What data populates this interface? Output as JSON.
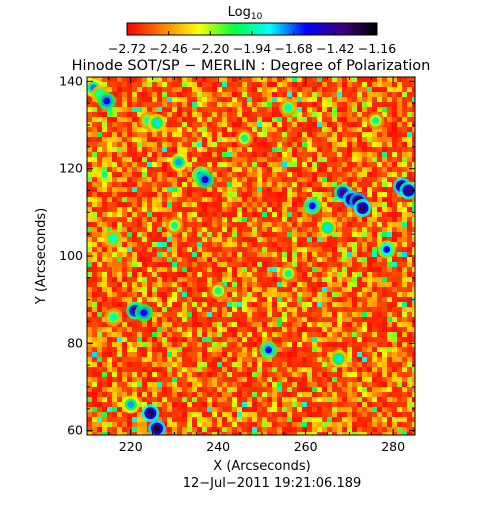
{
  "chart_data": {
    "type": "heatmap",
    "title": "Hinode SOT/SP − MERLIN : Degree of Polarization",
    "xlabel": "X (Arcseconds)",
    "ylabel": "Y (Arcseconds)",
    "footer": "12−Jul−2011  19:21:06.189",
    "xlim": [
      210,
      285
    ],
    "ylim": [
      59,
      141
    ],
    "x_ticks": [
      220,
      240,
      260,
      280
    ],
    "y_ticks": [
      60,
      80,
      100,
      120,
      140
    ],
    "x_tick_labels": [
      "220",
      "240",
      "260",
      "280"
    ],
    "y_tick_labels": [
      "60",
      "80",
      "100",
      "120",
      "140"
    ],
    "colorbar": {
      "label_base": "Log",
      "label_sub": "10",
      "ticks": [
        -2.72,
        -2.46,
        -2.2,
        -1.94,
        -1.68,
        -1.42,
        -1.16
      ],
      "tick_labels": [
        "−2.72",
        "−2.46",
        "−2.20",
        "−1.94",
        "−1.68",
        "−1.42",
        "−1.16"
      ],
      "range": [
        -2.72,
        -1.16
      ],
      "colors": [
        "#ff0000",
        "#ff8000",
        "#ffff00",
        "#00ff40",
        "#00ffff",
        "#0000ff",
        "#400080",
        "#000000"
      ]
    },
    "background_value": -2.65,
    "features": [
      {
        "x": 211.5,
        "y": 138.5,
        "value": -1.7
      },
      {
        "x": 213.0,
        "y": 137.0,
        "value": -1.85
      },
      {
        "x": 214.5,
        "y": 135.5,
        "value": -1.5
      },
      {
        "x": 224.0,
        "y": 131.0,
        "value": -1.9
      },
      {
        "x": 226.0,
        "y": 130.5,
        "value": -1.8
      },
      {
        "x": 231.0,
        "y": 121.5,
        "value": -1.75
      },
      {
        "x": 236.0,
        "y": 118.5,
        "value": -1.6
      },
      {
        "x": 237.0,
        "y": 117.5,
        "value": -1.5
      },
      {
        "x": 268.5,
        "y": 114.5,
        "value": -1.4
      },
      {
        "x": 270.5,
        "y": 113.0,
        "value": -1.25
      },
      {
        "x": 272.0,
        "y": 112.5,
        "value": -1.2
      },
      {
        "x": 273.0,
        "y": 111.0,
        "value": -1.3
      },
      {
        "x": 282.0,
        "y": 116.0,
        "value": -1.25
      },
      {
        "x": 283.5,
        "y": 115.0,
        "value": -1.35
      },
      {
        "x": 261.5,
        "y": 111.5,
        "value": -1.55
      },
      {
        "x": 265.0,
        "y": 106.5,
        "value": -1.8
      },
      {
        "x": 278.5,
        "y": 101.5,
        "value": -1.6
      },
      {
        "x": 216.0,
        "y": 104.0,
        "value": -1.85
      },
      {
        "x": 221.0,
        "y": 87.5,
        "value": -1.4
      },
      {
        "x": 223.0,
        "y": 87.0,
        "value": -1.5
      },
      {
        "x": 216.0,
        "y": 86.0,
        "value": -1.9
      },
      {
        "x": 251.5,
        "y": 78.5,
        "value": -1.55
      },
      {
        "x": 267.5,
        "y": 76.5,
        "value": -1.8
      },
      {
        "x": 224.5,
        "y": 64.0,
        "value": -1.3
      },
      {
        "x": 226.0,
        "y": 60.5,
        "value": -1.25
      },
      {
        "x": 220.0,
        "y": 66.0,
        "value": -1.75
      },
      {
        "x": 240.0,
        "y": 92.0,
        "value": -1.95
      },
      {
        "x": 246.0,
        "y": 127.0,
        "value": -1.95
      },
      {
        "x": 256.0,
        "y": 134.0,
        "value": -1.9
      },
      {
        "x": 276.0,
        "y": 131.0,
        "value": -1.95
      },
      {
        "x": 230.0,
        "y": 107.0,
        "value": -1.95
      },
      {
        "x": 256.0,
        "y": 96.0,
        "value": -1.95
      }
    ]
  }
}
